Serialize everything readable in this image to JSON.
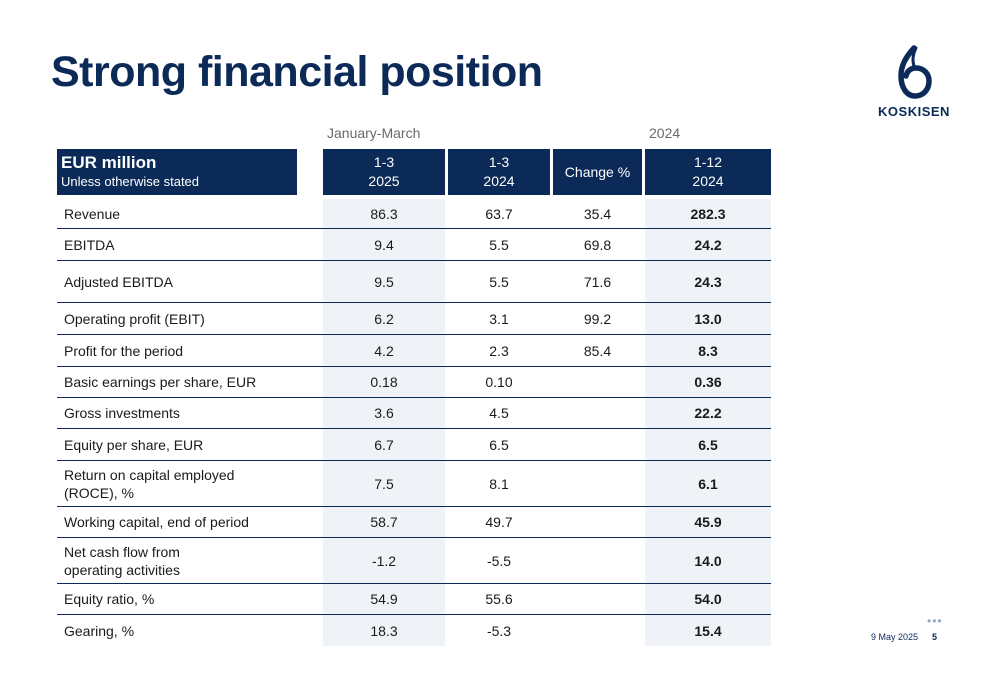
{
  "title": "Strong financial position",
  "brand": {
    "name": "KOSKISEN",
    "color": "#0b2a57",
    "logo_icon": "koskisen-logo-icon"
  },
  "groups": {
    "january_march": "January-March",
    "year": "2024"
  },
  "header": {
    "label_main": "EUR million",
    "label_sub": "Unless otherwise stated",
    "col1": [
      "1-3",
      "2025"
    ],
    "col2": [
      "1-3",
      "2024"
    ],
    "col3": "Change %",
    "col4": [
      "1-12",
      "2024"
    ]
  },
  "rows": [
    {
      "label": "Revenue",
      "q2025": "86.3",
      "q2024": "63.7",
      "change": "35.4",
      "fy2024": "282.3"
    },
    {
      "label": "EBITDA",
      "q2025": "9.4",
      "q2024": "5.5",
      "change": "69.8",
      "fy2024": "24.2"
    },
    {
      "label": "Adjusted EBITDA",
      "q2025": "9.5",
      "q2024": "5.5",
      "change": "71.6",
      "fy2024": "24.3"
    },
    {
      "label": "Operating profit (EBIT)",
      "q2025": "6.2",
      "q2024": "3.1",
      "change": "99.2",
      "fy2024": "13.0"
    },
    {
      "label": "Profit for the period",
      "q2025": "4.2",
      "q2024": "2.3",
      "change": "85.4",
      "fy2024": "8.3"
    },
    {
      "label": "Basic earnings per share, EUR",
      "q2025": "0.18",
      "q2024": "0.10",
      "change": "",
      "fy2024": "0.36"
    },
    {
      "label": "Gross investments",
      "q2025": "3.6",
      "q2024": "4.5",
      "change": "",
      "fy2024": "22.2"
    },
    {
      "label": "Equity per share, EUR",
      "q2025": "6.7",
      "q2024": "6.5",
      "change": "",
      "fy2024": "6.5"
    },
    {
      "label_lines": [
        "Return on capital employed",
        "(ROCE), %"
      ],
      "q2025": "7.5",
      "q2024": "8.1",
      "change": "",
      "fy2024": "6.1"
    },
    {
      "label": "Working capital, end of period",
      "q2025": "58.7",
      "q2024": "49.7",
      "change": "",
      "fy2024": "45.9"
    },
    {
      "label_lines": [
        "Net cash flow from",
        "operating activities"
      ],
      "q2025": "-1.2",
      "q2024": "-5.5",
      "change": "",
      "fy2024": "14.0"
    },
    {
      "label": "Equity ratio, %",
      "q2025": "54.9",
      "q2024": "55.6",
      "change": "",
      "fy2024": "54.0"
    },
    {
      "label": "Gearing, %",
      "q2025": "18.3",
      "q2024": "-5.3",
      "change": "",
      "fy2024": "15.4"
    }
  ],
  "footer": {
    "dots": "•••",
    "date": "9 May 2025",
    "page": "5"
  }
}
